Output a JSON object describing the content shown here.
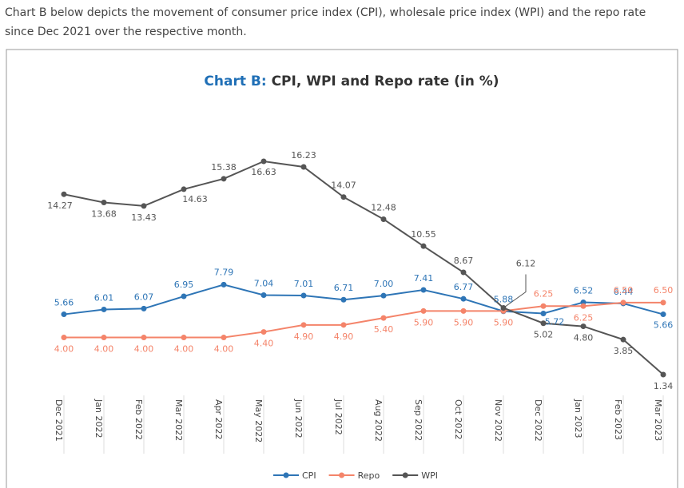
{
  "intro": "Chart B below depicts the movement of consumer price index (CPI), wholesale price index (WPI) and the repo rate since Dec 2021 over the respective month.",
  "chart_data": {
    "type": "line",
    "title_prefix": "Chart B:",
    "title": "CPI, WPI and Repo rate (in %)",
    "categories": [
      "Dec 2021",
      "Jan 2022",
      "Feb 2022",
      "Mar 2022",
      "Apr 2022",
      "May 2022",
      "Jun 2022",
      "Jul 2022",
      "Aug 2022",
      "Sep 2022",
      "Oct 2022",
      "Nov 2022",
      "Dec 2022",
      "Jan 2023",
      "Feb 2023",
      "Mar 2023"
    ],
    "series": [
      {
        "name": "CPI",
        "color": "#2e75b6",
        "values": [
          5.66,
          6.01,
          6.07,
          6.95,
          7.79,
          7.04,
          7.01,
          6.71,
          7.0,
          7.41,
          6.77,
          5.88,
          5.72,
          6.52,
          6.44,
          5.66
        ],
        "value_labels": [
          "5.66",
          "6.01",
          "6.07",
          "6.95",
          "7.79",
          "7.04",
          "7.01",
          "6.71",
          "7.00",
          "7.41",
          "6.77",
          "5.88",
          "5.72",
          "6.52",
          "6.44",
          "5.66"
        ]
      },
      {
        "name": "Repo",
        "color": "#f4846a",
        "values": [
          4.0,
          4.0,
          4.0,
          4.0,
          4.0,
          4.4,
          4.9,
          4.9,
          5.4,
          5.9,
          5.9,
          5.9,
          6.25,
          6.25,
          6.5,
          6.5
        ],
        "value_labels": [
          "4.00",
          "4.00",
          "4.00",
          "4.00",
          "4.00",
          "4.40",
          "4.90",
          "4.90",
          "5.40",
          "5.90",
          "5.90",
          "5.90",
          "6.25",
          "6.25",
          "6.50",
          "6.50"
        ]
      },
      {
        "name": "WPI",
        "color": "#555555",
        "values": [
          14.27,
          13.68,
          13.43,
          14.63,
          15.38,
          16.63,
          16.23,
          14.07,
          12.48,
          10.55,
          8.67,
          6.12,
          5.02,
          4.8,
          3.85,
          1.34
        ],
        "value_labels": [
          "14.27",
          "13.68",
          "13.43",
          "14.63",
          "15.38",
          "16.63",
          "16.23",
          "14.07",
          "12.48",
          "10.55",
          "8.67",
          "6.12",
          "5.02",
          "4.80",
          "3.85",
          "1.34"
        ]
      }
    ],
    "legend": "bottom"
  }
}
